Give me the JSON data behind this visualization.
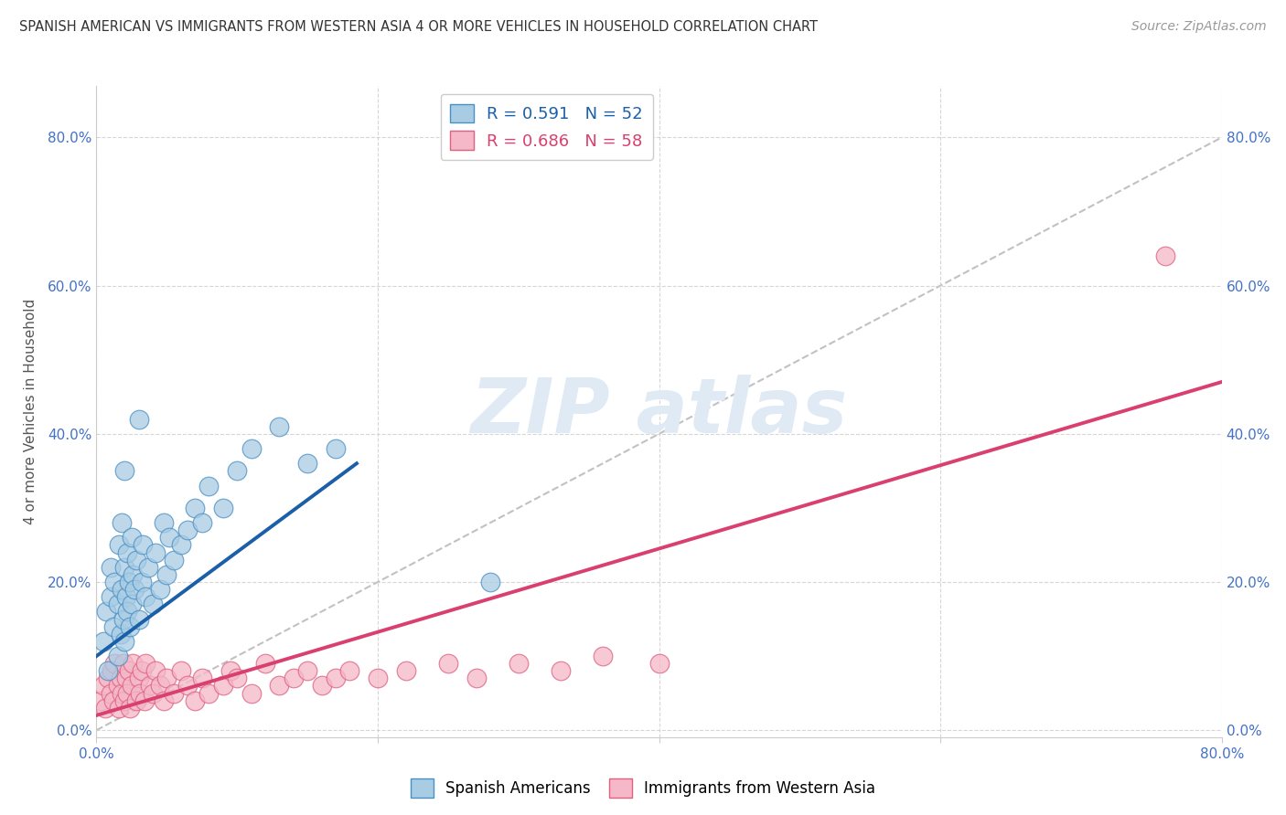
{
  "title": "SPANISH AMERICAN VS IMMIGRANTS FROM WESTERN ASIA 4 OR MORE VEHICLES IN HOUSEHOLD CORRELATION CHART",
  "source": "Source: ZipAtlas.com",
  "ylabel": "4 or more Vehicles in Household",
  "xmin": 0.0,
  "xmax": 0.8,
  "ymin": -0.01,
  "ymax": 0.87,
  "legend1_label": "R = 0.591   N = 52",
  "legend2_label": "R = 0.686   N = 58",
  "series1_color": "#a8cce4",
  "series2_color": "#f4b8c8",
  "series1_edge": "#4a90c4",
  "series2_edge": "#e06080",
  "line1_color": "#1a5fa8",
  "line2_color": "#d94070",
  "dashed_line_color": "#bbbbbb",
  "blue_scatter_x": [
    0.005,
    0.007,
    0.008,
    0.01,
    0.01,
    0.012,
    0.013,
    0.015,
    0.015,
    0.016,
    0.017,
    0.018,
    0.018,
    0.019,
    0.02,
    0.02,
    0.021,
    0.022,
    0.022,
    0.023,
    0.024,
    0.025,
    0.025,
    0.026,
    0.027,
    0.028,
    0.03,
    0.032,
    0.033,
    0.035,
    0.037,
    0.04,
    0.042,
    0.045,
    0.048,
    0.05,
    0.052,
    0.055,
    0.06,
    0.065,
    0.07,
    0.075,
    0.08,
    0.09,
    0.1,
    0.11,
    0.13,
    0.15,
    0.17,
    0.02,
    0.03,
    0.28
  ],
  "blue_scatter_y": [
    0.12,
    0.16,
    0.08,
    0.18,
    0.22,
    0.14,
    0.2,
    0.1,
    0.17,
    0.25,
    0.13,
    0.19,
    0.28,
    0.15,
    0.12,
    0.22,
    0.18,
    0.16,
    0.24,
    0.2,
    0.14,
    0.26,
    0.17,
    0.21,
    0.19,
    0.23,
    0.15,
    0.2,
    0.25,
    0.18,
    0.22,
    0.17,
    0.24,
    0.19,
    0.28,
    0.21,
    0.26,
    0.23,
    0.25,
    0.27,
    0.3,
    0.28,
    0.33,
    0.3,
    0.35,
    0.38,
    0.41,
    0.36,
    0.38,
    0.35,
    0.42,
    0.2
  ],
  "pink_scatter_x": [
    0.003,
    0.005,
    0.006,
    0.008,
    0.01,
    0.011,
    0.012,
    0.013,
    0.015,
    0.016,
    0.017,
    0.018,
    0.019,
    0.02,
    0.021,
    0.022,
    0.023,
    0.024,
    0.025,
    0.026,
    0.028,
    0.03,
    0.031,
    0.032,
    0.034,
    0.035,
    0.038,
    0.04,
    0.042,
    0.045,
    0.048,
    0.05,
    0.055,
    0.06,
    0.065,
    0.07,
    0.075,
    0.08,
    0.09,
    0.095,
    0.1,
    0.11,
    0.12,
    0.13,
    0.14,
    0.15,
    0.16,
    0.17,
    0.18,
    0.2,
    0.22,
    0.25,
    0.27,
    0.3,
    0.33,
    0.36,
    0.4,
    0.76
  ],
  "pink_scatter_y": [
    0.04,
    0.06,
    0.03,
    0.07,
    0.05,
    0.08,
    0.04,
    0.09,
    0.06,
    0.03,
    0.07,
    0.05,
    0.09,
    0.04,
    0.07,
    0.05,
    0.08,
    0.03,
    0.06,
    0.09,
    0.04,
    0.07,
    0.05,
    0.08,
    0.04,
    0.09,
    0.06,
    0.05,
    0.08,
    0.06,
    0.04,
    0.07,
    0.05,
    0.08,
    0.06,
    0.04,
    0.07,
    0.05,
    0.06,
    0.08,
    0.07,
    0.05,
    0.09,
    0.06,
    0.07,
    0.08,
    0.06,
    0.07,
    0.08,
    0.07,
    0.08,
    0.09,
    0.07,
    0.09,
    0.08,
    0.1,
    0.09,
    0.64
  ],
  "blue_line_x": [
    0.0,
    0.185
  ],
  "blue_line_y": [
    0.1,
    0.36
  ],
  "pink_line_x": [
    0.0,
    0.8
  ],
  "pink_line_y": [
    0.02,
    0.47
  ],
  "dash_line_x": [
    0.0,
    0.8
  ],
  "dash_line_y": [
    0.0,
    0.8
  ],
  "yticks": [
    0.0,
    0.2,
    0.4,
    0.6,
    0.8
  ],
  "ytick_labels": [
    "0.0%",
    "20.0%",
    "40.0%",
    "60.0%",
    "80.0%"
  ],
  "xtick_labels_show": [
    "0.0%",
    "80.0%"
  ]
}
